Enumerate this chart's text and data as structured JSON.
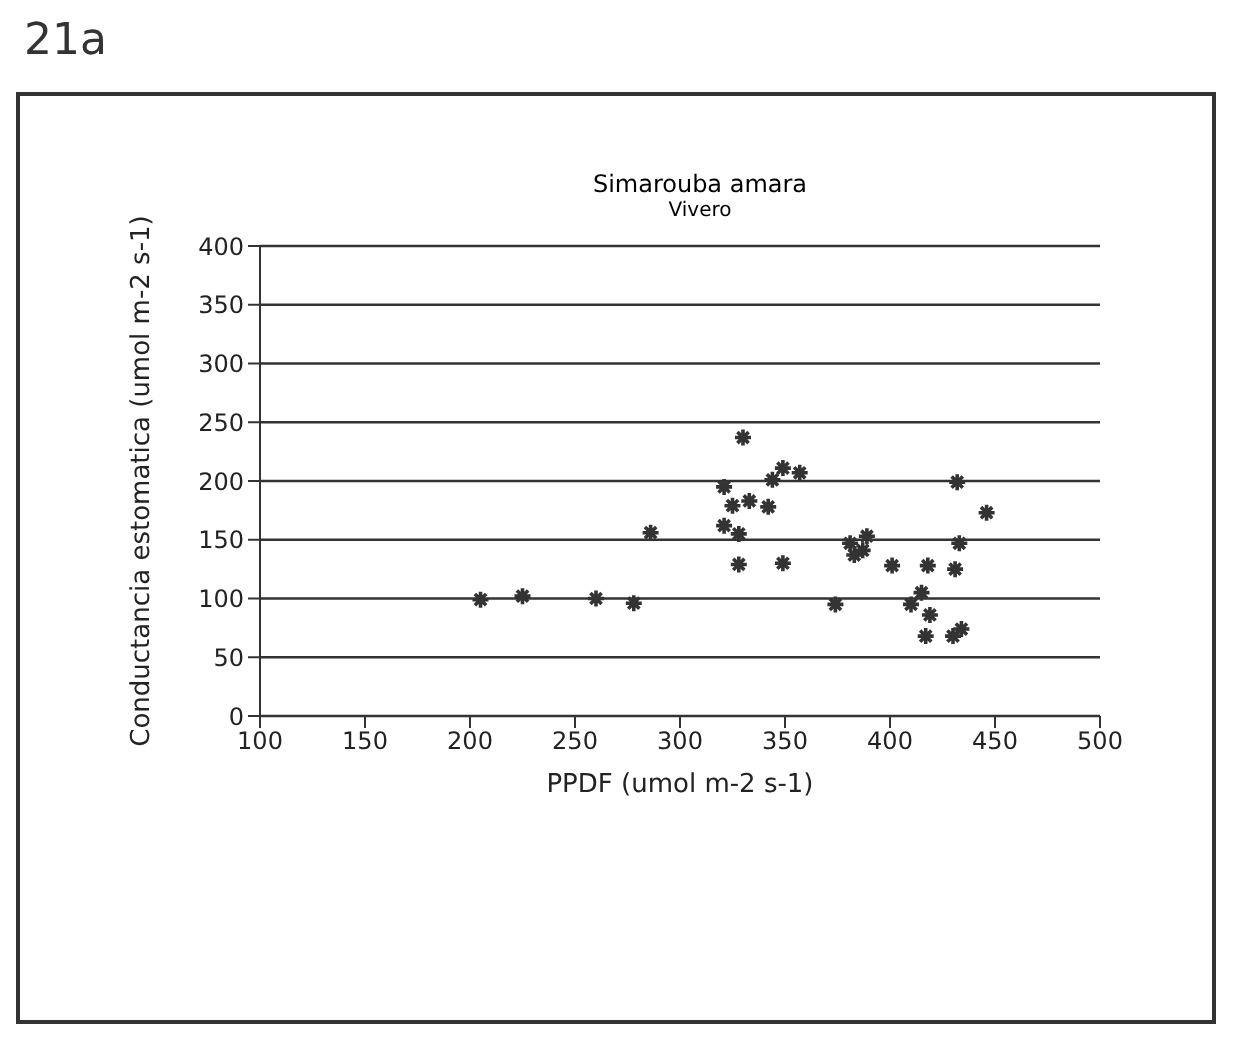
{
  "chart_data": {
    "type": "scatter",
    "title": "Simarouba amara",
    "subtitle": "Vivero",
    "xlabel": "PPDF (umol m-2 s-1)",
    "ylabel": "Conductancia estomatica (umol m-2 s-1)",
    "annotations": [
      "21a"
    ],
    "series": [
      {
        "color": "#333333",
        "x": [
          205,
          225,
          260,
          278,
          286,
          330,
          321,
          325,
          333,
          342,
          321,
          328,
          328,
          349,
          344,
          349,
          357,
          374,
          381,
          389,
          383,
          387,
          401,
          418,
          431,
          432,
          446,
          433,
          410,
          415,
          419,
          417,
          430,
          434
        ],
        "values": [
          99,
          102,
          100,
          96,
          156,
          237,
          195,
          179,
          183,
          178,
          162,
          155,
          129,
          130,
          201,
          211,
          207,
          95,
          147,
          153,
          137,
          141,
          128,
          128,
          125,
          199,
          173,
          147,
          95,
          105,
          86,
          68,
          68,
          74
        ]
      }
    ],
    "xlim": [
      100,
      500
    ],
    "xticks": [
      100,
      150,
      200,
      250,
      300,
      350,
      400,
      450,
      500
    ],
    "ylim": [
      0,
      400
    ],
    "yticks": [
      0,
      50,
      100,
      150,
      200,
      250,
      300,
      350,
      400
    ],
    "grid": "y",
    "marker": "cross"
  }
}
